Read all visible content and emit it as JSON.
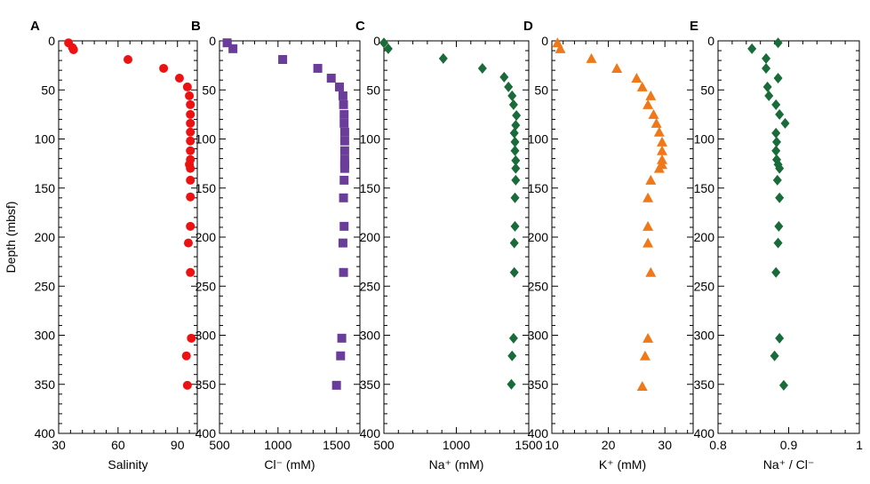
{
  "y_axis": {
    "label": "Depth (mbsf)",
    "range": [
      0,
      400
    ],
    "ticks": [
      0,
      50,
      100,
      150,
      200,
      250,
      300,
      350,
      400
    ]
  },
  "chart_data": [
    {
      "type": "scatter",
      "panel": "A",
      "xlabel": "Salinity",
      "xlim": [
        30,
        100
      ],
      "xticks": [
        30,
        60,
        90
      ],
      "marker": "circle",
      "color": "#ee1111",
      "points": [
        [
          35,
          2
        ],
        [
          37,
          7
        ],
        [
          37.5,
          9
        ],
        [
          65,
          19
        ],
        [
          83,
          28
        ],
        [
          91,
          38
        ],
        [
          95,
          47
        ],
        [
          96,
          56
        ],
        [
          96.5,
          65
        ],
        [
          96.5,
          75
        ],
        [
          96.5,
          84
        ],
        [
          96.5,
          93
        ],
        [
          96.5,
          102
        ],
        [
          96.5,
          112
        ],
        [
          96.5,
          121
        ],
        [
          96,
          126
        ],
        [
          96.5,
          130
        ],
        [
          96.5,
          142
        ],
        [
          96.5,
          159
        ],
        [
          96.5,
          189
        ],
        [
          95.5,
          206
        ],
        [
          96.5,
          236
        ],
        [
          97,
          303
        ],
        [
          94.5,
          321
        ],
        [
          95,
          351
        ]
      ]
    },
    {
      "type": "scatter",
      "panel": "B",
      "xlabel": "Cl⁻ (mM)",
      "xlim": [
        500,
        1700
      ],
      "xticks": [
        500,
        1000,
        1500
      ],
      "marker": "square",
      "color": "#6a3d9a",
      "points": [
        [
          565,
          2
        ],
        [
          615,
          8
        ],
        [
          1040,
          19
        ],
        [
          1340,
          28
        ],
        [
          1455,
          38
        ],
        [
          1525,
          47
        ],
        [
          1555,
          56
        ],
        [
          1560,
          65
        ],
        [
          1565,
          75
        ],
        [
          1565,
          84
        ],
        [
          1570,
          93
        ],
        [
          1570,
          102
        ],
        [
          1570,
          112
        ],
        [
          1570,
          121
        ],
        [
          1570,
          126
        ],
        [
          1570,
          130
        ],
        [
          1565,
          142
        ],
        [
          1560,
          160
        ],
        [
          1565,
          189
        ],
        [
          1555,
          206
        ],
        [
          1560,
          236
        ],
        [
          1545,
          303
        ],
        [
          1535,
          321
        ],
        [
          1500,
          351
        ]
      ]
    },
    {
      "type": "scatter",
      "panel": "C",
      "xlabel": "Na⁺ (mM)",
      "xlim": [
        500,
        1500
      ],
      "xticks": [
        500,
        1000,
        1500
      ],
      "marker": "diamond",
      "color": "#1a6b3a",
      "points": [
        [
          500,
          2
        ],
        [
          530,
          8
        ],
        [
          910,
          18
        ],
        [
          1180,
          28
        ],
        [
          1330,
          37
        ],
        [
          1360,
          47
        ],
        [
          1385,
          56
        ],
        [
          1395,
          65
        ],
        [
          1415,
          76
        ],
        [
          1410,
          86
        ],
        [
          1400,
          94
        ],
        [
          1405,
          103
        ],
        [
          1405,
          112
        ],
        [
          1410,
          122
        ],
        [
          1410,
          130
        ],
        [
          1410,
          142
        ],
        [
          1405,
          160
        ],
        [
          1405,
          189
        ],
        [
          1400,
          206
        ],
        [
          1400,
          236
        ],
        [
          1395,
          303
        ],
        [
          1385,
          321
        ],
        [
          1380,
          350
        ]
      ]
    },
    {
      "type": "scatter",
      "panel": "D",
      "xlabel": "K⁺ (mM)",
      "xlim": [
        10,
        35
      ],
      "xticks": [
        10,
        20,
        30
      ],
      "marker": "triangle",
      "color": "#f07818",
      "points": [
        [
          11,
          2
        ],
        [
          11.5,
          8
        ],
        [
          17,
          18
        ],
        [
          21.5,
          28
        ],
        [
          25,
          38
        ],
        [
          26,
          47
        ],
        [
          27.5,
          56
        ],
        [
          27,
          65
        ],
        [
          28,
          75
        ],
        [
          28.5,
          84
        ],
        [
          29,
          93
        ],
        [
          29.5,
          103
        ],
        [
          29.5,
          112
        ],
        [
          29.5,
          121
        ],
        [
          29.5,
          126
        ],
        [
          29,
          130
        ],
        [
          27.5,
          142
        ],
        [
          27,
          160
        ],
        [
          27,
          189
        ],
        [
          27,
          206
        ],
        [
          27.5,
          236
        ],
        [
          27,
          303
        ],
        [
          26.5,
          321
        ],
        [
          26,
          352
        ]
      ]
    },
    {
      "type": "scatter",
      "panel": "E",
      "xlabel": "Na⁺ / Cl⁻",
      "xlim": [
        0.8,
        1
      ],
      "xticks": [
        0.8,
        0.9,
        1
      ],
      "xtick_labels": [
        "0.8",
        "0.9",
        "1"
      ],
      "marker": "diamond",
      "color": "#1a6b3a",
      "points": [
        [
          0.885,
          2
        ],
        [
          0.848,
          8
        ],
        [
          0.868,
          18
        ],
        [
          0.868,
          28
        ],
        [
          0.885,
          38
        ],
        [
          0.87,
          47
        ],
        [
          0.872,
          56
        ],
        [
          0.882,
          65
        ],
        [
          0.887,
          75
        ],
        [
          0.895,
          84
        ],
        [
          0.882,
          94
        ],
        [
          0.883,
          103
        ],
        [
          0.882,
          112
        ],
        [
          0.883,
          121
        ],
        [
          0.885,
          126
        ],
        [
          0.887,
          130
        ],
        [
          0.884,
          142
        ],
        [
          0.887,
          160
        ],
        [
          0.886,
          189
        ],
        [
          0.885,
          206
        ],
        [
          0.882,
          236
        ],
        [
          0.887,
          303
        ],
        [
          0.88,
          321
        ],
        [
          0.893,
          351
        ]
      ]
    }
  ]
}
